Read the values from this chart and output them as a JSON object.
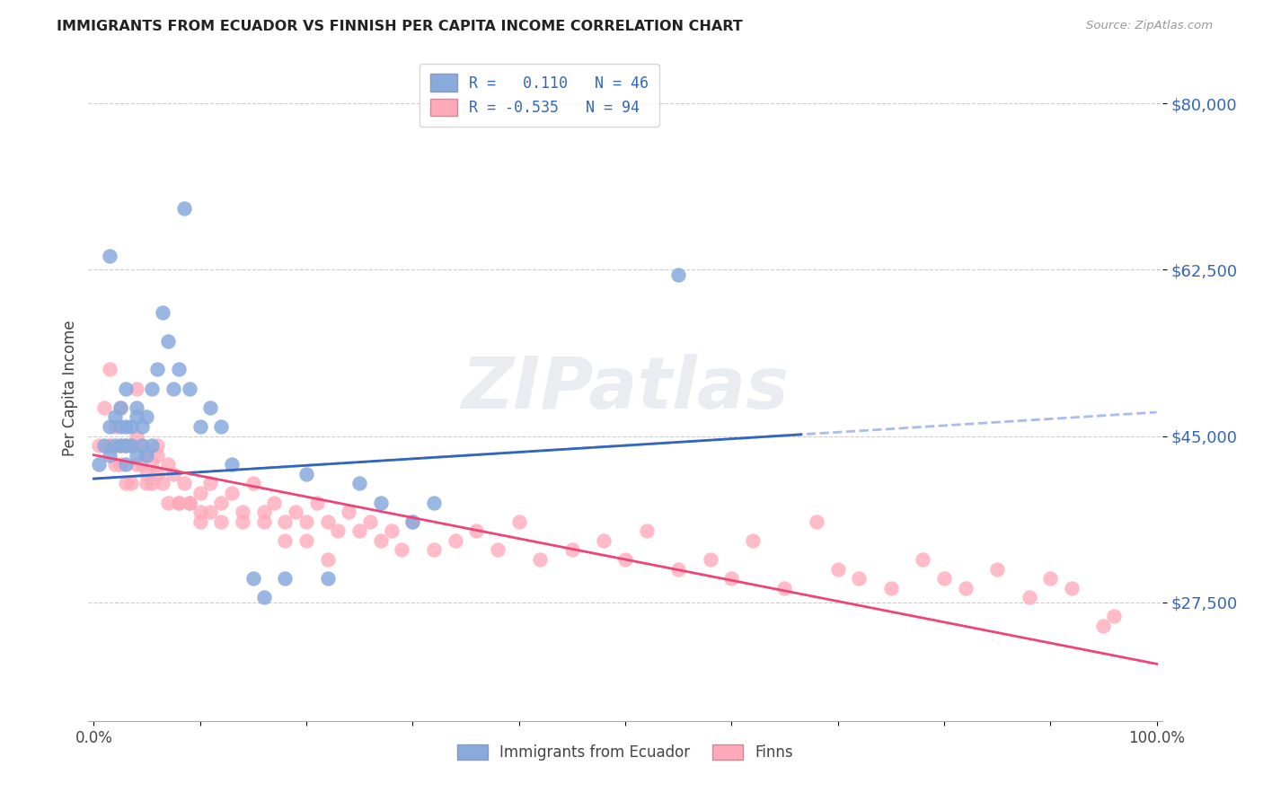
{
  "title": "IMMIGRANTS FROM ECUADOR VS FINNISH PER CAPITA INCOME CORRELATION CHART",
  "source": "Source: ZipAtlas.com",
  "ylabel": "Per Capita Income",
  "ylim": [
    15000,
    85000
  ],
  "xlim": [
    -0.005,
    1.005
  ],
  "blue_color": "#88AADD",
  "pink_color": "#FFAABB",
  "blue_line_color": "#3366BB",
  "pink_line_color": "#EE4477",
  "blue_dashed_color": "#AABBEE",
  "watermark": "ZIPatlas",
  "y_tick_vals": [
    27500,
    45000,
    62500,
    80000
  ],
  "y_tick_labels": [
    "$27,500",
    "$45,000",
    "$62,500",
    "$80,000"
  ],
  "blue_line_x0": 0.0,
  "blue_line_y0": 40500,
  "blue_line_x1": 1.0,
  "blue_line_y1": 47500,
  "pink_line_x0": 0.0,
  "pink_line_y0": 43000,
  "pink_line_x1": 1.0,
  "pink_line_y1": 21000,
  "blue_points_x": [
    0.005,
    0.01,
    0.015,
    0.015,
    0.02,
    0.02,
    0.025,
    0.025,
    0.025,
    0.03,
    0.03,
    0.03,
    0.03,
    0.035,
    0.035,
    0.04,
    0.04,
    0.04,
    0.045,
    0.045,
    0.05,
    0.05,
    0.055,
    0.055,
    0.06,
    0.065,
    0.07,
    0.075,
    0.08,
    0.085,
    0.09,
    0.1,
    0.11,
    0.12,
    0.13,
    0.15,
    0.16,
    0.18,
    0.2,
    0.22,
    0.25,
    0.27,
    0.3,
    0.32,
    0.55,
    0.015
  ],
  "blue_points_y": [
    42000,
    44000,
    43000,
    46000,
    44000,
    47000,
    46000,
    44000,
    48000,
    50000,
    46000,
    44000,
    42000,
    46000,
    44000,
    48000,
    47000,
    43000,
    46000,
    44000,
    47000,
    43000,
    50000,
    44000,
    52000,
    58000,
    55000,
    50000,
    52000,
    69000,
    50000,
    46000,
    48000,
    46000,
    42000,
    30000,
    28000,
    30000,
    41000,
    30000,
    40000,
    38000,
    36000,
    38000,
    62000,
    64000
  ],
  "pink_points_x": [
    0.005,
    0.01,
    0.015,
    0.015,
    0.02,
    0.02,
    0.025,
    0.025,
    0.03,
    0.03,
    0.035,
    0.035,
    0.04,
    0.04,
    0.045,
    0.045,
    0.05,
    0.05,
    0.055,
    0.055,
    0.06,
    0.06,
    0.065,
    0.07,
    0.075,
    0.08,
    0.085,
    0.09,
    0.1,
    0.1,
    0.11,
    0.12,
    0.13,
    0.14,
    0.15,
    0.16,
    0.17,
    0.18,
    0.19,
    0.2,
    0.21,
    0.22,
    0.23,
    0.24,
    0.25,
    0.26,
    0.27,
    0.28,
    0.29,
    0.3,
    0.32,
    0.34,
    0.36,
    0.38,
    0.4,
    0.42,
    0.45,
    0.48,
    0.5,
    0.52,
    0.55,
    0.58,
    0.6,
    0.62,
    0.65,
    0.68,
    0.7,
    0.72,
    0.75,
    0.78,
    0.8,
    0.82,
    0.85,
    0.88,
    0.9,
    0.92,
    0.95,
    0.025,
    0.04,
    0.05,
    0.06,
    0.07,
    0.08,
    0.09,
    0.1,
    0.11,
    0.12,
    0.14,
    0.16,
    0.18,
    0.2,
    0.22,
    0.96,
    0.015
  ],
  "pink_points_y": [
    44000,
    48000,
    52000,
    44000,
    46000,
    42000,
    44000,
    42000,
    44000,
    40000,
    44000,
    40000,
    45000,
    42000,
    44000,
    42000,
    43000,
    41000,
    42000,
    40000,
    43000,
    41000,
    40000,
    42000,
    41000,
    38000,
    40000,
    38000,
    39000,
    37000,
    40000,
    38000,
    39000,
    37000,
    40000,
    37000,
    38000,
    36000,
    37000,
    36000,
    38000,
    36000,
    35000,
    37000,
    35000,
    36000,
    34000,
    35000,
    33000,
    36000,
    33000,
    34000,
    35000,
    33000,
    36000,
    32000,
    33000,
    34000,
    32000,
    35000,
    31000,
    32000,
    30000,
    34000,
    29000,
    36000,
    31000,
    30000,
    29000,
    32000,
    30000,
    29000,
    31000,
    28000,
    30000,
    29000,
    25000,
    48000,
    50000,
    40000,
    44000,
    38000,
    38000,
    38000,
    36000,
    37000,
    36000,
    36000,
    36000,
    34000,
    34000,
    32000,
    26000,
    44000
  ]
}
